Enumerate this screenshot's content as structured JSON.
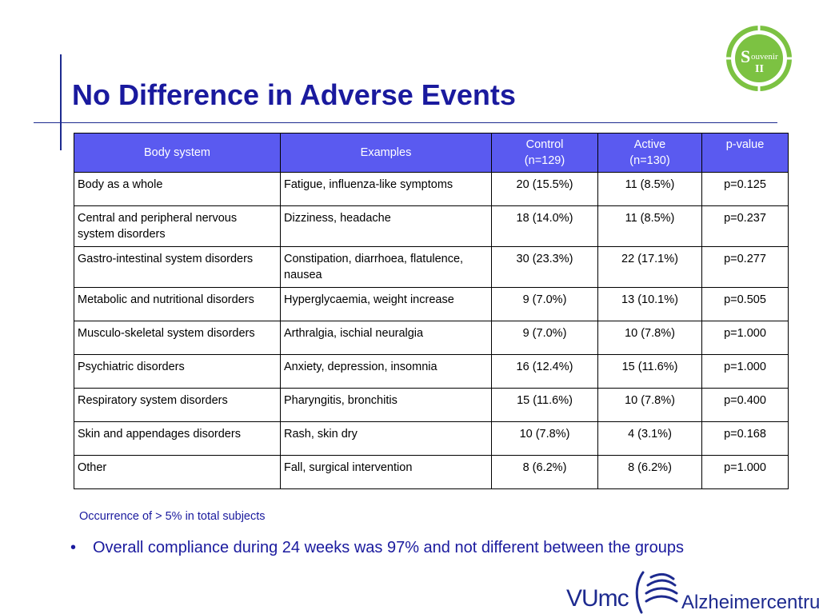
{
  "slide": {
    "title": "No Difference in Adverse Events",
    "footnote": "Occurrence of > 5% in total subjects",
    "bullet_text": "Overall compliance during 24 weeks was 97% and not different between the groups"
  },
  "badge": {
    "letter": "S",
    "word": "ouvenir",
    "numeral": "II"
  },
  "logo": {
    "left": "VUmc",
    "right": "Alzheimercentrum"
  },
  "colors": {
    "title": "#1a1a9e",
    "header_bg": "#5a5af0",
    "badge_green": "#7cc242"
  },
  "table": {
    "headers": {
      "body_system": "Body system",
      "examples": "Examples",
      "control_line1": "Control",
      "control_line2": "(n=129)",
      "active_line1": "Active",
      "active_line2": "(n=130)",
      "pvalue": "p-value"
    },
    "rows": [
      {
        "body_system": "Body as a whole",
        "examples": "Fatigue, influenza-like symptoms",
        "control": "20 (15.5%)",
        "active": "11 (8.5%)",
        "p": "p=0.125"
      },
      {
        "body_system": "Central and peripheral nervous system disorders",
        "examples": "Dizziness, headache",
        "control": "18 (14.0%)",
        "active": "11 (8.5%)",
        "p": "p=0.237"
      },
      {
        "body_system": "Gastro-intestinal system disorders",
        "examples": "Constipation, diarrhoea, flatulence, nausea",
        "control": "30 (23.3%)",
        "active": "22 (17.1%)",
        "p": "p=0.277"
      },
      {
        "body_system": "Metabolic and nutritional disorders",
        "examples": "Hyperglycaemia, weight increase",
        "control": "9 (7.0%)",
        "active": "13 (10.1%)",
        "p": "p=0.505"
      },
      {
        "body_system": "Musculo-skeletal system disorders",
        "examples": "Arthralgia, ischial neuralgia",
        "control": "9 (7.0%)",
        "active": "10 (7.8%)",
        "p": "p=1.000"
      },
      {
        "body_system": "Psychiatric disorders",
        "examples": "Anxiety, depression, insomnia",
        "control": "16 (12.4%)",
        "active": "15 (11.6%)",
        "p": "p=1.000"
      },
      {
        "body_system": "Respiratory system disorders",
        "examples": "Pharyngitis, bronchitis",
        "control": "15 (11.6%)",
        "active": "10 (7.8%)",
        "p": "p=0.400"
      },
      {
        "body_system": "Skin and appendages disorders",
        "examples": "Rash, skin dry",
        "control": "10 (7.8%)",
        "active": "4 (3.1%)",
        "p": "p=0.168"
      },
      {
        "body_system": "Other",
        "examples": "Fall, surgical intervention",
        "control": "8 (6.2%)",
        "active": "8 (6.2%)",
        "p": "p=1.000"
      }
    ]
  }
}
